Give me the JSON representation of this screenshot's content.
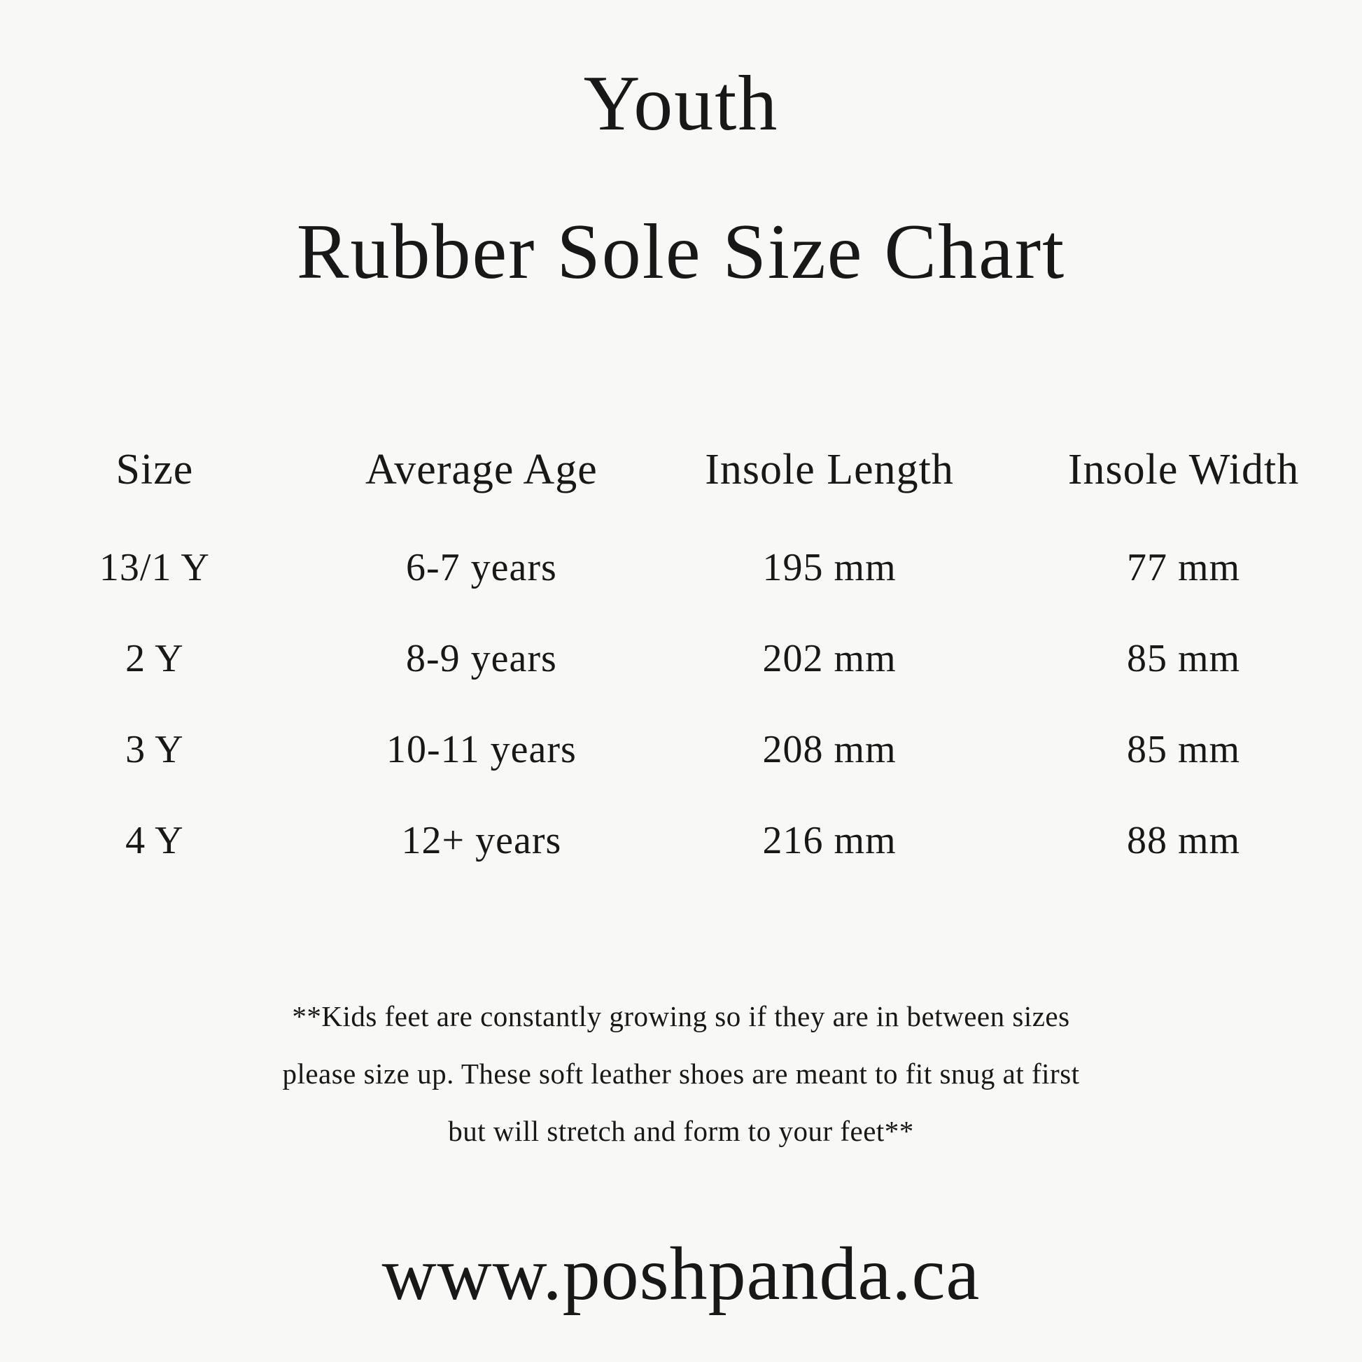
{
  "colors": {
    "background": "#f8f8f6",
    "text": "#181818"
  },
  "title": {
    "line1": "Youth",
    "line2": "Rubber Sole Size Chart"
  },
  "chart_data": {
    "type": "table",
    "title": "Youth Rubber Sole Size Chart",
    "columns": [
      "Size",
      "Average Age",
      "Insole Length",
      "Insole Width"
    ],
    "rows": [
      [
        "13/1 Y",
        "6-7 years",
        "195 mm",
        "77 mm"
      ],
      [
        "2 Y",
        "8-9 years",
        "202 mm",
        "85 mm"
      ],
      [
        "3 Y",
        "10-11 years",
        "208 mm",
        "85 mm"
      ],
      [
        "4 Y",
        "12+ years",
        "216 mm",
        "88 mm"
      ]
    ]
  },
  "note": {
    "lines": [
      "**Kids feet are constantly growing so if they are in between sizes",
      "please size up. These soft leather shoes are meant to fit snug at first",
      "but will stretch and form to your feet**"
    ]
  },
  "footer": {
    "website": "www.poshpanda.ca"
  }
}
